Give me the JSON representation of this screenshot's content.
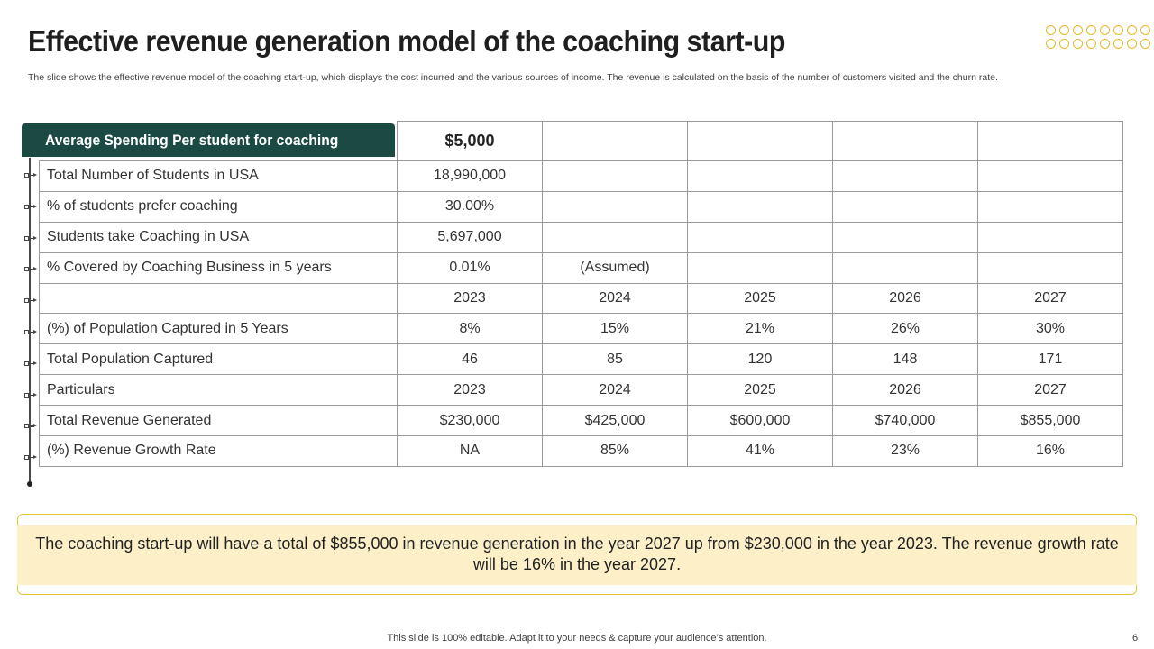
{
  "slide": {
    "title": "Effective revenue generation model of the coaching start-up",
    "subtitle": "The slide shows the effective revenue model of the coaching start-up, which displays the cost incurred and the various sources of income. The revenue is calculated on the basis of the number of customers visited and the churn rate.",
    "page_number": "6",
    "footer": "This slide is 100% editable. Adapt it to your needs & capture your audience’s attention.",
    "accent_color": "#1b4a43",
    "highlight_color": "#fdf0c8"
  },
  "table": {
    "header_label": "Average Spending Per student for coaching",
    "header_value": "$5,000",
    "rows": [
      {
        "label": "Total Number of Students in USA",
        "cells": [
          "18,990,000",
          "",
          "",
          "",
          ""
        ]
      },
      {
        "label": "% of students prefer coaching",
        "cells": [
          "30.00%",
          "",
          "",
          "",
          ""
        ]
      },
      {
        "label": "Students take Coaching in USA",
        "cells": [
          "5,697,000",
          "",
          "",
          "",
          ""
        ]
      },
      {
        "label": "% Covered by Coaching Business in 5 years",
        "cells": [
          "0.01%",
          "(Assumed)",
          "",
          "",
          ""
        ]
      },
      {
        "label": "",
        "cells": [
          "2023",
          "2024",
          "2025",
          "2026",
          "2027"
        ]
      },
      {
        "label": "(%) of Population Captured in 5 Years",
        "cells": [
          "8%",
          "15%",
          "21%",
          "26%",
          "30%"
        ]
      },
      {
        "label": "Total Population Captured",
        "cells": [
          "46",
          "85",
          "120",
          "148",
          "171"
        ]
      },
      {
        "label": "Particulars",
        "cells": [
          "2023",
          "2024",
          "2025",
          "2026",
          "2027"
        ]
      },
      {
        "label": "Total Revenue Generated",
        "cells": [
          "$230,000",
          "$425,000",
          "$600,000",
          "$740,000",
          "$855,000"
        ]
      },
      {
        "label": "(%) Revenue Growth Rate",
        "cells": [
          "NA",
          "85%",
          "41%",
          "23%",
          "16%"
        ]
      }
    ]
  },
  "summary": {
    "text": "The coaching start-up will have a total of $855,000 in revenue generation in the year 2027 up from $230,000 in the year 2023. The revenue growth rate will be 16% in the year 2027."
  }
}
